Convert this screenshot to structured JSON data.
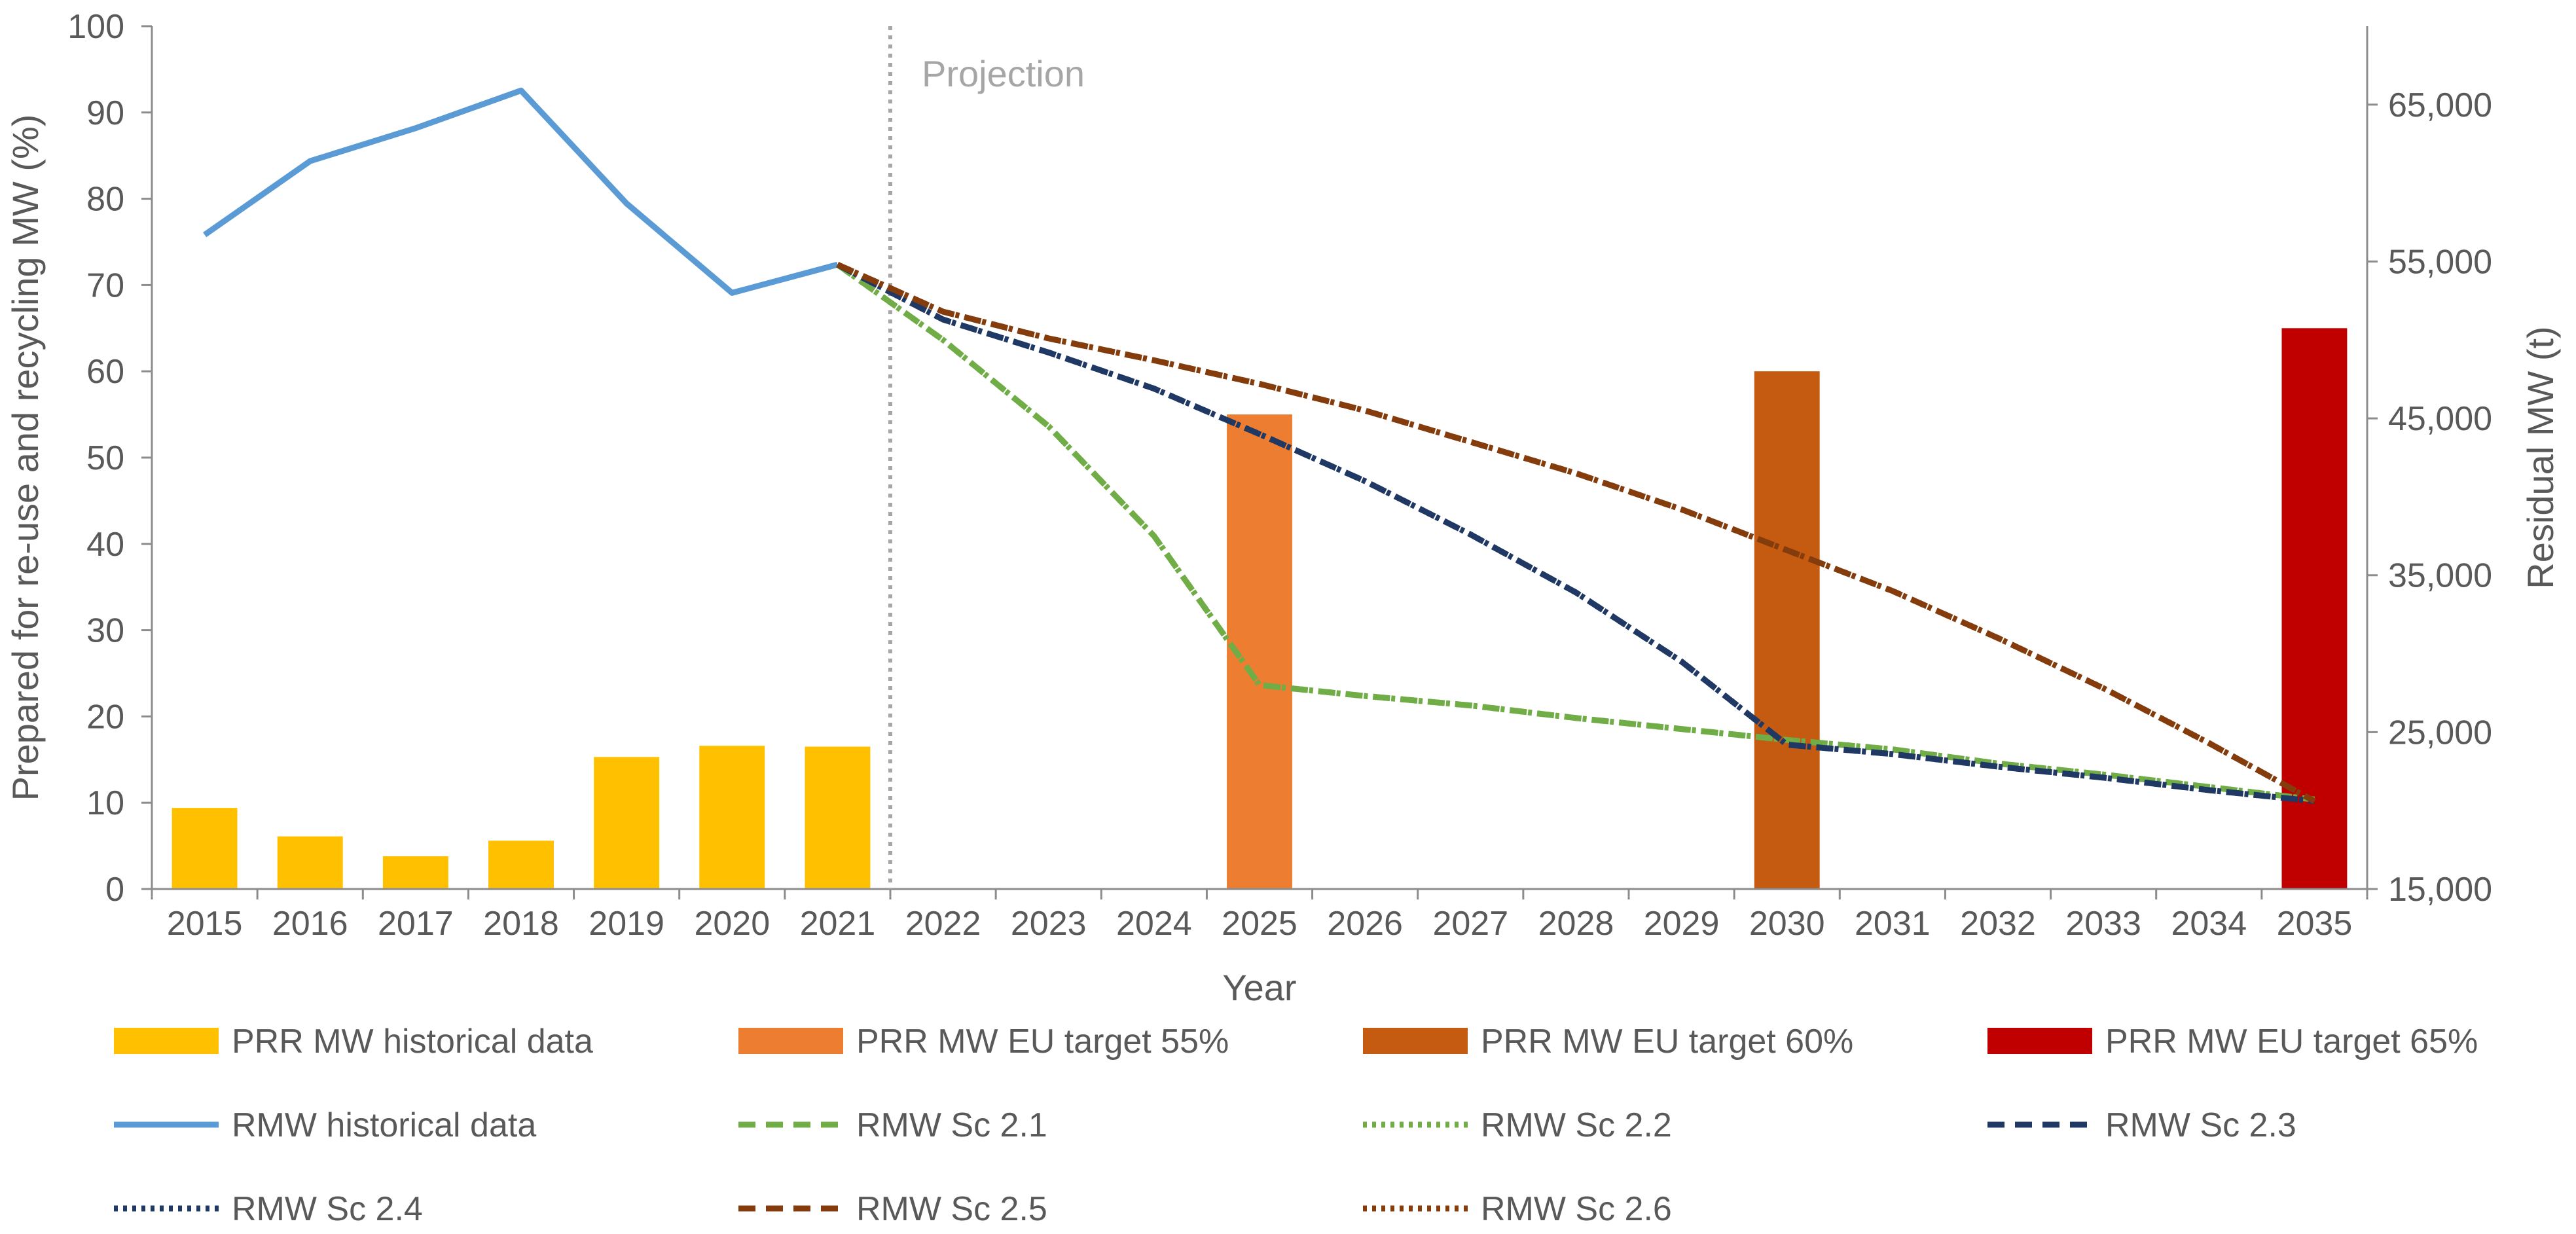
{
  "chart_data": {
    "type": "bar",
    "categories": [
      "2015",
      "2016",
      "2017",
      "2018",
      "2019",
      "2020",
      "2021",
      "2022",
      "2023",
      "2024",
      "2025",
      "2026",
      "2027",
      "2028",
      "2029",
      "2030",
      "2031",
      "2032",
      "2033",
      "2034",
      "2035"
    ],
    "xlabel": "Year",
    "ylabel_left": "Prepared for re-use and recycling MW (%)",
    "ylabel_right": "Residual MW (t)",
    "ylim_left": [
      0,
      100
    ],
    "yticks_left": [
      "0",
      "10",
      "20",
      "30",
      "40",
      "50",
      "60",
      "70",
      "80",
      "90",
      "100"
    ],
    "ylim_right": [
      15000,
      70000
    ],
    "yticks_right": [
      "15,000",
      "25,000",
      "35,000",
      "45,000",
      "55,000",
      "65,000"
    ],
    "projection_label": "Projection",
    "projection_at": "2021",
    "grid": false,
    "legend_position": "bottom",
    "bar_series": [
      {
        "name": "PRR MW historical data",
        "color": "#FFC000",
        "values": [
          9.4,
          6.1,
          3.8,
          5.6,
          15.3,
          16.6,
          16.5,
          null,
          null,
          null,
          null,
          null,
          null,
          null,
          null,
          null,
          null,
          null,
          null,
          null,
          null
        ]
      },
      {
        "name": "PRR MW EU target 55%",
        "color": "#ED7D31",
        "values": [
          null,
          null,
          null,
          null,
          null,
          null,
          null,
          null,
          null,
          null,
          55,
          null,
          null,
          null,
          null,
          null,
          null,
          null,
          null,
          null,
          null
        ]
      },
      {
        "name": "PRR MW EU target 60%",
        "color": "#C55A11",
        "values": [
          null,
          null,
          null,
          null,
          null,
          null,
          null,
          null,
          null,
          null,
          null,
          null,
          null,
          null,
          null,
          60,
          null,
          null,
          null,
          null,
          null
        ]
      },
      {
        "name": "PRR MW EU target 65%",
        "color": "#C00000",
        "values": [
          null,
          null,
          null,
          null,
          null,
          null,
          null,
          null,
          null,
          null,
          null,
          null,
          null,
          null,
          null,
          null,
          null,
          null,
          null,
          null,
          65
        ]
      }
    ],
    "line_series": [
      {
        "name": "RMW historical data",
        "color": "#5B9BD5",
        "dash": "solid",
        "points": [
          [
            "2015",
            56700
          ],
          [
            "2016",
            61400
          ],
          [
            "2017",
            63500
          ],
          [
            "2018",
            65900
          ],
          [
            "2019",
            58700
          ],
          [
            "2020",
            53000
          ],
          [
            "2021",
            54800
          ]
        ]
      },
      {
        "name": "RMW Sc 2.1",
        "color": "#70AD47",
        "dash": "dashed",
        "points": [
          [
            "2021",
            54800
          ],
          [
            "2022",
            50000
          ],
          [
            "2023",
            44500
          ],
          [
            "2024",
            37500
          ],
          [
            "2025",
            28000
          ],
          [
            "2026",
            27300
          ],
          [
            "2027",
            26700
          ],
          [
            "2028",
            25900
          ],
          [
            "2029",
            25200
          ],
          [
            "2030",
            24500
          ],
          [
            "2031",
            23900
          ],
          [
            "2032",
            23000
          ],
          [
            "2033",
            22300
          ],
          [
            "2034",
            21500
          ],
          [
            "2035",
            20700
          ]
        ]
      },
      {
        "name": "RMW Sc 2.2",
        "color": "#70AD47",
        "dash": "dotted",
        "points": [
          [
            "2021",
            54800
          ],
          [
            "2022",
            50000
          ],
          [
            "2023",
            44500
          ],
          [
            "2024",
            37500
          ],
          [
            "2025",
            28000
          ],
          [
            "2026",
            27300
          ],
          [
            "2027",
            26700
          ],
          [
            "2028",
            25900
          ],
          [
            "2029",
            25200
          ],
          [
            "2030",
            24500
          ],
          [
            "2031",
            23900
          ],
          [
            "2032",
            23000
          ],
          [
            "2033",
            22300
          ],
          [
            "2034",
            21500
          ],
          [
            "2035",
            20700
          ]
        ]
      },
      {
        "name": "RMW Sc 2.3",
        "color": "#203864",
        "dash": "dashed",
        "points": [
          [
            "2021",
            54800
          ],
          [
            "2022",
            51300
          ],
          [
            "2023",
            49200
          ],
          [
            "2024",
            46900
          ],
          [
            "2025",
            44000
          ],
          [
            "2026",
            41000
          ],
          [
            "2027",
            37600
          ],
          [
            "2028",
            33900
          ],
          [
            "2029",
            29500
          ],
          [
            "2030",
            24200
          ],
          [
            "2031",
            23600
          ],
          [
            "2032",
            22800
          ],
          [
            "2033",
            22100
          ],
          [
            "2034",
            21300
          ],
          [
            "2035",
            20600
          ]
        ]
      },
      {
        "name": "RMW Sc 2.4",
        "color": "#203864",
        "dash": "dotted",
        "points": [
          [
            "2021",
            54800
          ],
          [
            "2022",
            51300
          ],
          [
            "2023",
            49200
          ],
          [
            "2024",
            46900
          ],
          [
            "2025",
            44000
          ],
          [
            "2026",
            41000
          ],
          [
            "2027",
            37600
          ],
          [
            "2028",
            33900
          ],
          [
            "2029",
            29500
          ],
          [
            "2030",
            24200
          ],
          [
            "2031",
            23600
          ],
          [
            "2032",
            22800
          ],
          [
            "2033",
            22100
          ],
          [
            "2034",
            21300
          ],
          [
            "2035",
            20600
          ]
        ]
      },
      {
        "name": "RMW Sc 2.5",
        "color": "#843C0C",
        "dash": "dashed",
        "points": [
          [
            "2021",
            54800
          ],
          [
            "2022",
            51800
          ],
          [
            "2023",
            50100
          ],
          [
            "2024",
            48700
          ],
          [
            "2025",
            47200
          ],
          [
            "2026",
            45500
          ],
          [
            "2027",
            43500
          ],
          [
            "2028",
            41500
          ],
          [
            "2029",
            39200
          ],
          [
            "2030",
            36600
          ],
          [
            "2031",
            34000
          ],
          [
            "2032",
            31000
          ],
          [
            "2033",
            27800
          ],
          [
            "2034",
            24300
          ],
          [
            "2035",
            20600
          ]
        ]
      },
      {
        "name": "RMW Sc 2.6",
        "color": "#843C0C",
        "dash": "dotted",
        "points": [
          [
            "2021",
            54800
          ],
          [
            "2022",
            51800
          ],
          [
            "2023",
            50100
          ],
          [
            "2024",
            48700
          ],
          [
            "2025",
            47200
          ],
          [
            "2026",
            45500
          ],
          [
            "2027",
            43500
          ],
          [
            "2028",
            41500
          ],
          [
            "2029",
            39200
          ],
          [
            "2030",
            36600
          ],
          [
            "2031",
            34000
          ],
          [
            "2032",
            31000
          ],
          [
            "2033",
            27800
          ],
          [
            "2034",
            24300
          ],
          [
            "2035",
            20600
          ]
        ]
      }
    ]
  }
}
